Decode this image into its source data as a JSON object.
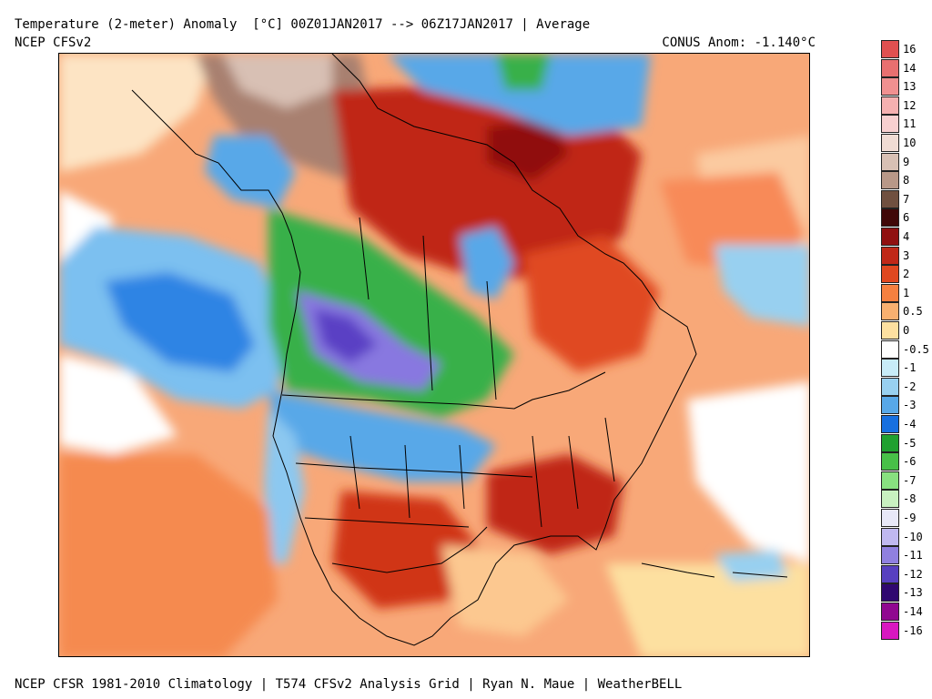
{
  "header": {
    "title": "Temperature (2-meter) Anomaly  [°C] 00Z01JAN2017 --> 06Z17JAN2017 | Average",
    "subtitle": "NCEP CFSv2",
    "conus_anomaly": "CONUS Anom: -1.140°C"
  },
  "footer": {
    "credits": "NCEP CFSR 1981-2010 Climatology | T574 CFSv2 Analysis Grid | Ryan N. Maue | WeatherBELL"
  },
  "map": {
    "region": "North America",
    "variable": "2-meter temperature anomaly",
    "units": "°C",
    "period_start": "00Z01JAN2017",
    "period_end": "06Z17JAN2017"
  },
  "colorbar": {
    "labels": [
      "16",
      "14",
      "13",
      "12",
      "11",
      "10",
      "9",
      "8",
      "7",
      "6",
      "4",
      "3",
      "2",
      "1",
      "0.5",
      "0",
      "-0.5",
      "-1",
      "-2",
      "-3",
      "-4",
      "-5",
      "-6",
      "-7",
      "-8",
      "-9",
      "-10",
      "-11",
      "-12",
      "-13",
      "-14",
      "-16"
    ],
    "colors": [
      "#e05050",
      "#e87070",
      "#f09090",
      "#f5b0b0",
      "#f8d0d0",
      "#f0dcd4",
      "#d8c0b4",
      "#b89888",
      "#705040",
      "#400808",
      "#901010",
      "#c02818",
      "#e04820",
      "#f58040",
      "#f8b070",
      "#fde0a0",
      "#ffffff",
      "#c8ecf8",
      "#98d0f0",
      "#58a8e8",
      "#1870e0",
      "#20a030",
      "#48c048",
      "#88e080",
      "#c8f0c0",
      "#e8e8f8",
      "#c0b8f0",
      "#9080e0",
      "#5840c0",
      "#300870",
      "#900890",
      "#d818c0"
    ]
  }
}
